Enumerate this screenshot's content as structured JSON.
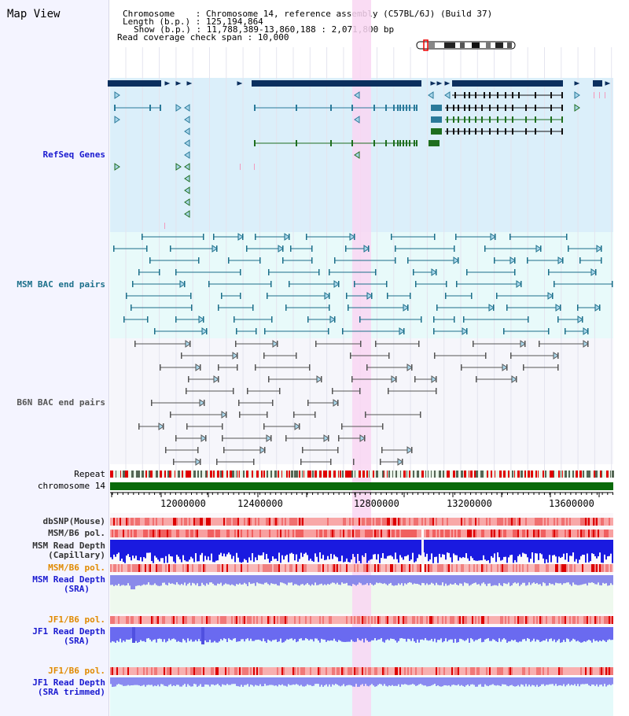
{
  "view": {
    "title": "Map View"
  },
  "header": {
    "chromosome": "Chromosome    : Chromosome 14, reference assembly (C57BL/6J) (Build 37)",
    "length": "Length (b.p.) : 125,194,864",
    "show": "Show (b.p.) : 11,788,389-13,860,188 : 2,071,800 bp",
    "coverage": "Read coverage check span : 10,000"
  },
  "tracks": {
    "refseq": "RefSeq Genes",
    "msm_bac": "MSM BAC end pairs",
    "b6n_bac": "B6N BAC end pairs",
    "repeat": "Repeat",
    "chrom": "chromosome 14",
    "dbsnp": "dbSNP(Mouse)",
    "msm_pol": "MSM/B6 pol.",
    "msm_depth_cap_1": "MSM Read Depth",
    "msm_depth_cap_2": "(Capillary)",
    "msm_pol2": "MSM/B6 pol.",
    "msm_depth_sra_1": "MSM Read Depth",
    "msm_depth_sra_2": "(SRA)",
    "jf1_pol": "JF1/B6 pol.",
    "jf1_depth_1": "JF1 Read Depth",
    "jf1_depth_2": "(SRA)",
    "jf1_pol2": "JF1/B6 pol.",
    "jf1_trim_1": "JF1 Read Depth",
    "jf1_trim_2": "(SRA trimmed)"
  },
  "axis": {
    "ticks": [
      "12000000",
      "12400000",
      "12800000",
      "13200000",
      "13600000"
    ]
  },
  "colors": {
    "refseq_bg": "#dbeffa",
    "msm_bg": "#e8fafa",
    "b6n_bg": "#f6f6fb",
    "highlight": "#f9d6f2",
    "gene_dark": "#0b2f5e",
    "gene_teal": "#2a7a9a",
    "gene_green": "#1e6e1e",
    "bac": "#1b6f8a",
    "b6n": "#555555",
    "chrom_bar": "#0a6a0a",
    "label_blue": "#1a1ad0",
    "label_orange": "#e08a00",
    "label_dark": "#333333"
  }
}
